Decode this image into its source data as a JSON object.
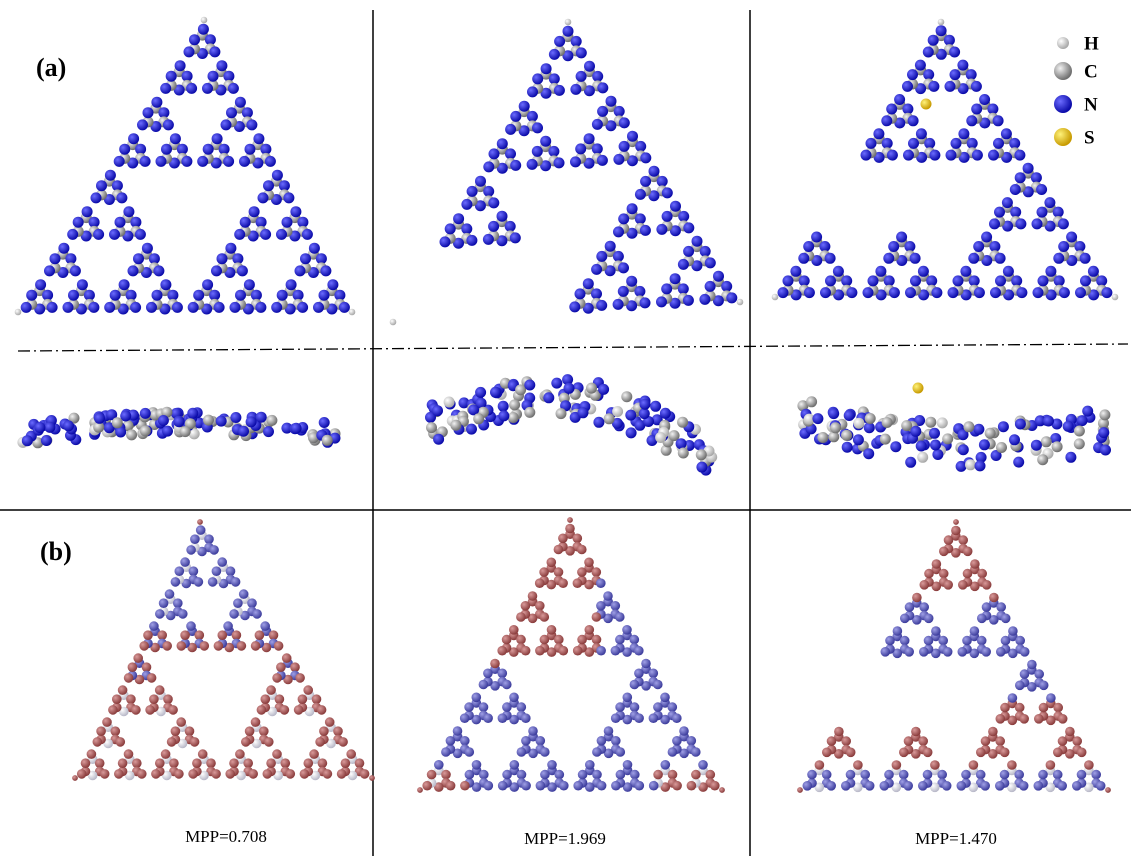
{
  "panels": {
    "a": "(a)",
    "b": "(b)"
  },
  "legend": [
    "H",
    "C",
    "N",
    "S"
  ],
  "mpp_labels": [
    "MPP=0.708",
    "MPP=1.969",
    "MPP=1.470"
  ]
}
